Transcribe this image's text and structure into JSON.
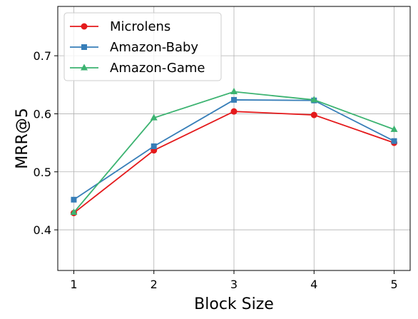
{
  "chart_data": {
    "type": "line",
    "xlabel": "Block Size",
    "ylabel": "MRR@5",
    "x": [
      1,
      2,
      3,
      4,
      5
    ],
    "xticks": [
      "1",
      "2",
      "3",
      "4",
      "5"
    ],
    "yticks": [
      "0.4",
      "0.5",
      "0.6",
      "0.7"
    ],
    "xlim": [
      0.8,
      5.2
    ],
    "ylim": [
      0.33,
      0.785
    ],
    "grid": true,
    "legend_position": "top-left",
    "series": [
      {
        "name": "Microlens",
        "values": [
          0.429,
          0.537,
          0.604,
          0.598,
          0.55
        ],
        "color": "#e41a1c",
        "marker": "circle"
      },
      {
        "name": "Amazon-Baby",
        "values": [
          0.452,
          0.544,
          0.624,
          0.623,
          0.553
        ],
        "color": "#377eb8",
        "marker": "square"
      },
      {
        "name": "Amazon-Game",
        "values": [
          0.43,
          0.593,
          0.638,
          0.624,
          0.573
        ],
        "color": "#3cb371",
        "marker": "triangle"
      }
    ]
  }
}
